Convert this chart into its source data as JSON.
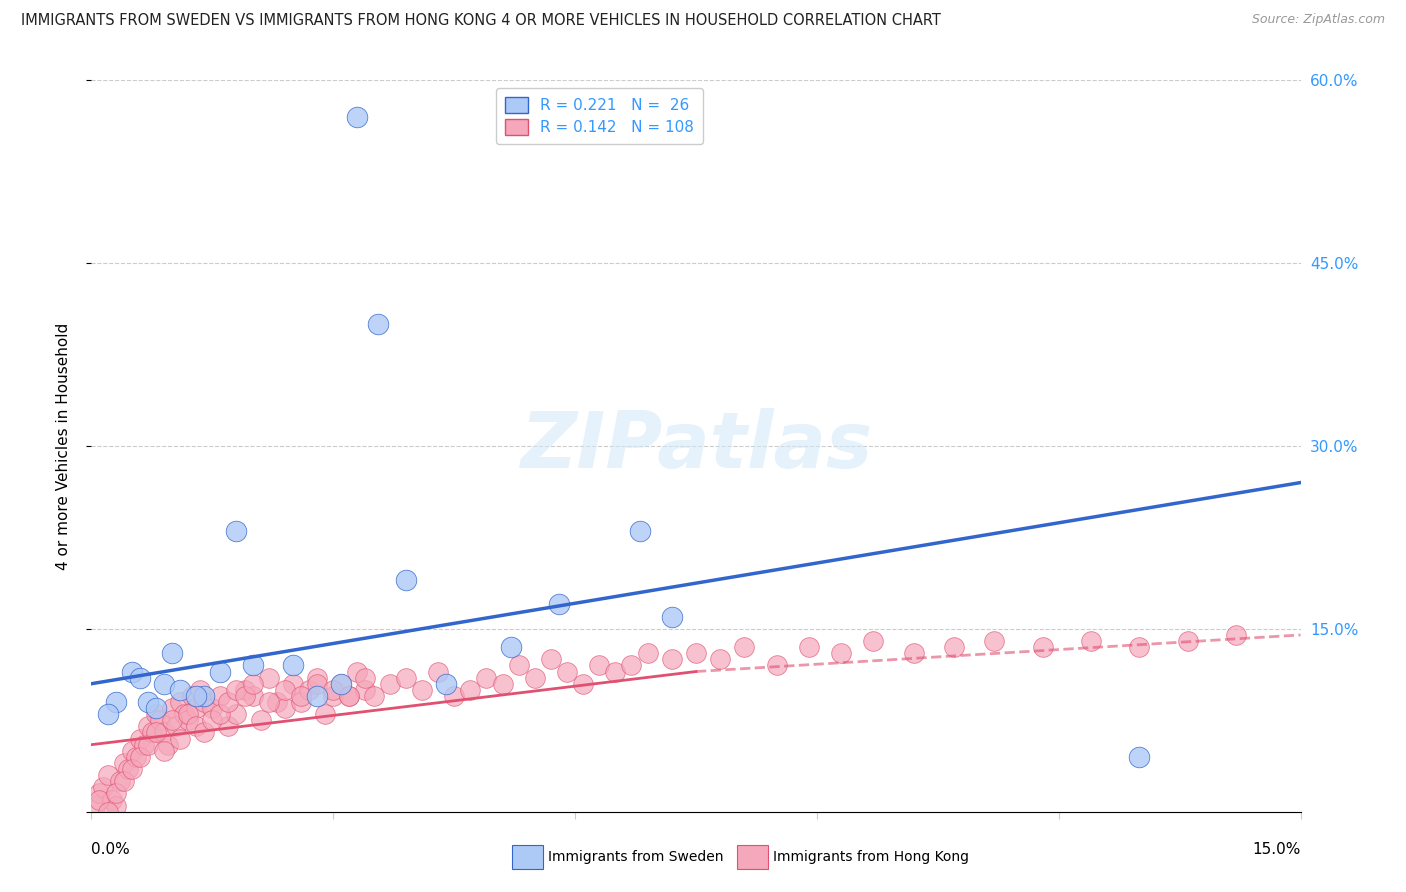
{
  "title": "IMMIGRANTS FROM SWEDEN VS IMMIGRANTS FROM HONG KONG 4 OR MORE VEHICLES IN HOUSEHOLD CORRELATION CHART",
  "source": "Source: ZipAtlas.com",
  "ylabel": "4 or more Vehicles in Household",
  "xlim": [
    0.0,
    15.0
  ],
  "ylim": [
    0.0,
    60.0
  ],
  "legend_r_sweden": "0.221",
  "legend_n_sweden": "26",
  "legend_r_hk": "0.142",
  "legend_n_hk": "108",
  "legend_label_sweden": "Immigrants from Sweden",
  "legend_label_hk": "Immigrants from Hong Kong",
  "sweden_color": "#adc9f5",
  "hk_color": "#f5a7bb",
  "trend_sweden_color": "#3366cc",
  "trend_hk_color": "#e05070",
  "blue_text_color": "#3399ff",
  "background_color": "#ffffff",
  "grid_color": "#cccccc",
  "watermark": "ZIPatlas",
  "sweden_x": [
    3.3,
    3.55,
    1.8,
    3.9,
    5.8,
    6.8,
    7.2,
    13.0,
    1.0,
    0.5,
    0.7,
    0.9,
    1.1,
    1.4,
    0.3,
    0.6,
    1.6,
    2.0,
    2.8,
    3.1,
    2.5,
    0.2,
    4.4,
    5.2,
    0.8,
    1.3
  ],
  "sweden_y": [
    57.0,
    40.0,
    23.0,
    19.0,
    17.0,
    23.0,
    16.0,
    4.5,
    13.0,
    11.5,
    9.0,
    10.5,
    10.0,
    9.5,
    9.0,
    11.0,
    11.5,
    12.0,
    9.5,
    10.5,
    12.0,
    8.0,
    10.5,
    13.5,
    8.5,
    9.5
  ],
  "hk_x": [
    0.05,
    0.1,
    0.15,
    0.2,
    0.25,
    0.3,
    0.35,
    0.4,
    0.45,
    0.5,
    0.55,
    0.6,
    0.65,
    0.7,
    0.75,
    0.8,
    0.85,
    0.9,
    0.95,
    1.0,
    1.05,
    1.1,
    1.15,
    1.2,
    1.25,
    1.3,
    1.35,
    1.4,
    1.5,
    1.6,
    1.7,
    1.8,
    1.9,
    2.0,
    2.1,
    2.2,
    2.3,
    2.4,
    2.5,
    2.6,
    2.7,
    2.8,
    2.9,
    3.0,
    3.1,
    3.2,
    3.3,
    3.4,
    3.5,
    3.7,
    3.9,
    4.1,
    4.3,
    4.5,
    4.7,
    4.9,
    5.1,
    5.3,
    5.5,
    5.7,
    5.9,
    6.1,
    6.3,
    6.5,
    6.7,
    6.9,
    7.2,
    7.5,
    7.8,
    8.1,
    8.5,
    8.9,
    9.3,
    9.7,
    10.2,
    10.7,
    11.2,
    11.8,
    12.4,
    13.0,
    13.6,
    14.2,
    0.1,
    0.2,
    0.3,
    0.4,
    0.5,
    0.6,
    0.7,
    0.8,
    0.9,
    1.0,
    1.1,
    1.2,
    1.3,
    1.4,
    1.5,
    1.6,
    1.7,
    1.8,
    1.9,
    2.0,
    2.2,
    2.4,
    2.6,
    2.8,
    3.0,
    3.2,
    3.4
  ],
  "hk_y": [
    0.5,
    1.5,
    2.0,
    3.0,
    1.0,
    0.5,
    2.5,
    4.0,
    3.5,
    5.0,
    4.5,
    6.0,
    5.5,
    7.0,
    6.5,
    8.0,
    7.5,
    6.5,
    5.5,
    8.5,
    7.0,
    9.0,
    8.0,
    7.5,
    9.5,
    8.5,
    10.0,
    9.0,
    8.5,
    9.5,
    7.0,
    8.0,
    10.0,
    9.5,
    7.5,
    11.0,
    9.0,
    8.5,
    10.5,
    9.0,
    10.0,
    11.0,
    8.0,
    9.5,
    10.5,
    9.5,
    11.5,
    10.0,
    9.5,
    10.5,
    11.0,
    10.0,
    11.5,
    9.5,
    10.0,
    11.0,
    10.5,
    12.0,
    11.0,
    12.5,
    11.5,
    10.5,
    12.0,
    11.5,
    12.0,
    13.0,
    12.5,
    13.0,
    12.5,
    13.5,
    12.0,
    13.5,
    13.0,
    14.0,
    13.0,
    13.5,
    14.0,
    13.5,
    14.0,
    13.5,
    14.0,
    14.5,
    1.0,
    0.0,
    1.5,
    2.5,
    3.5,
    4.5,
    5.5,
    6.5,
    5.0,
    7.5,
    6.0,
    8.0,
    7.0,
    6.5,
    7.5,
    8.0,
    9.0,
    10.0,
    9.5,
    10.5,
    9.0,
    10.0,
    9.5,
    10.5,
    10.0,
    9.5,
    11.0
  ],
  "trend_sweden_x0": 0.0,
  "trend_sweden_y0": 10.5,
  "trend_sweden_x1": 15.0,
  "trend_sweden_y1": 27.0,
  "trend_hk_x0": 0.0,
  "trend_hk_y0": 5.5,
  "trend_hk_x1": 7.5,
  "trend_hk_y1": 11.5,
  "trend_hk_dash_x0": 7.5,
  "trend_hk_dash_y0": 11.5,
  "trend_hk_dash_x1": 15.0,
  "trend_hk_dash_y1": 14.5
}
